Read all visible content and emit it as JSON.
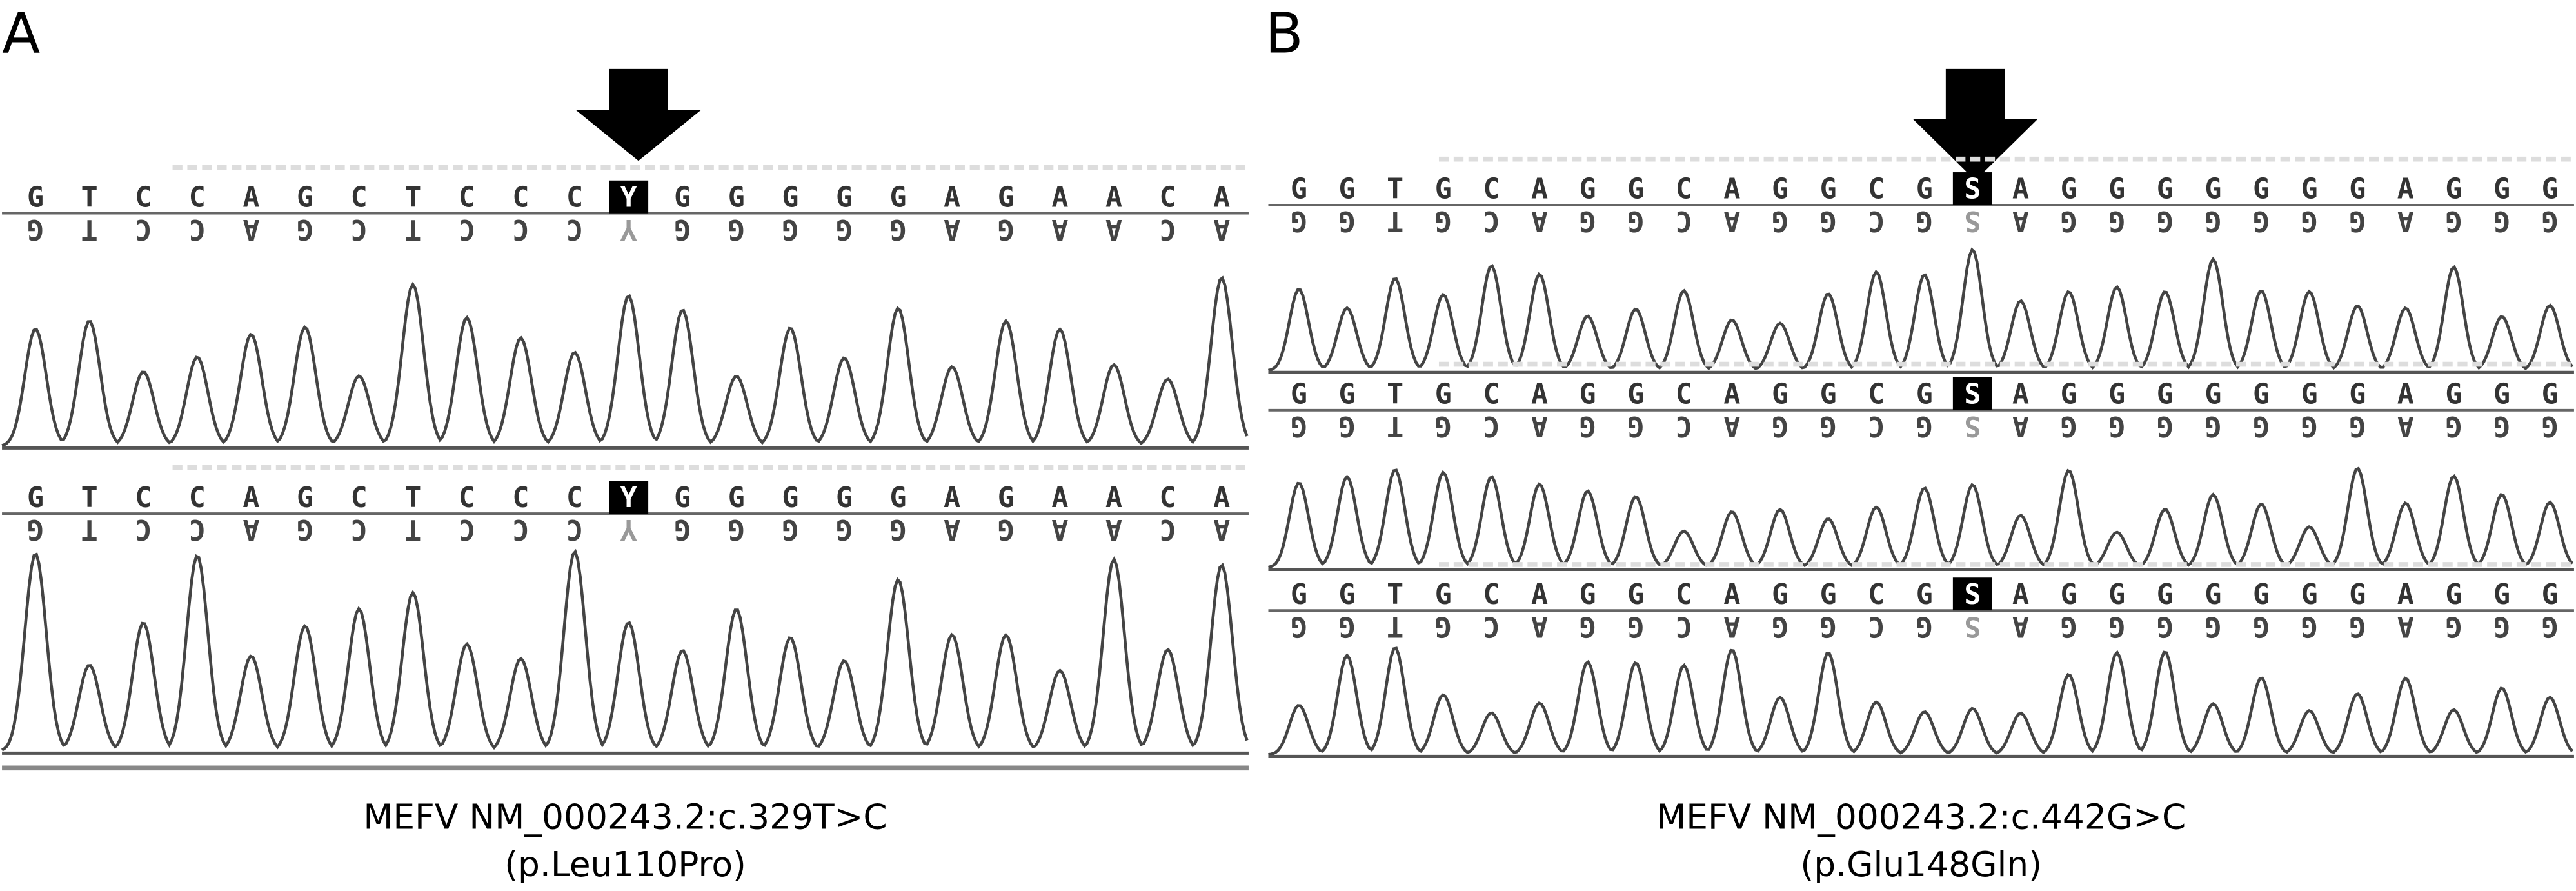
{
  "panels": [
    {
      "label": "A",
      "tracks": [
        {
          "bases": [
            "G",
            "T",
            "C",
            "C",
            "A",
            "G",
            "C",
            "T",
            "C",
            "C",
            "C",
            "Y",
            "G",
            "G",
            "G",
            "G",
            "G",
            "A",
            "G",
            "A",
            "A",
            "C",
            "A"
          ]
        },
        {
          "bases": [
            "G",
            "T",
            "C",
            "C",
            "A",
            "G",
            "C",
            "T",
            "C",
            "C",
            "C",
            "Y",
            "G",
            "G",
            "G",
            "G",
            "G",
            "A",
            "G",
            "A",
            "A",
            "C",
            "A"
          ]
        }
      ],
      "caption": [
        "MEFV NM_000243.2:c.329T>C",
        "(p.Leu110Pro)"
      ]
    },
    {
      "label": "B",
      "tracks": [
        {
          "bases": [
            "G",
            "G",
            "T",
            "G",
            "C",
            "A",
            "G",
            "G",
            "C",
            "A",
            "G",
            "G",
            "C",
            "G",
            "S",
            "A",
            "G",
            "G",
            "G",
            "G",
            "G",
            "G",
            "G",
            "A",
            "G",
            "G",
            "G"
          ]
        },
        {
          "bases": [
            "G",
            "G",
            "T",
            "G",
            "C",
            "A",
            "G",
            "G",
            "C",
            "A",
            "G",
            "G",
            "C",
            "G",
            "S",
            "A",
            "G",
            "G",
            "G",
            "G",
            "G",
            "G",
            "G",
            "A",
            "G",
            "G",
            "G"
          ]
        },
        {
          "bases": [
            "G",
            "G",
            "T",
            "G",
            "C",
            "A",
            "G",
            "G",
            "C",
            "A",
            "G",
            "G",
            "C",
            "G",
            "S",
            "A",
            "G",
            "G",
            "G",
            "G",
            "G",
            "G",
            "G",
            "A",
            "G",
            "G",
            "G"
          ]
        }
      ],
      "caption": [
        "MEFV NM_000243.2:c.442G>C",
        "(p.Glu148Gln)"
      ]
    }
  ]
}
